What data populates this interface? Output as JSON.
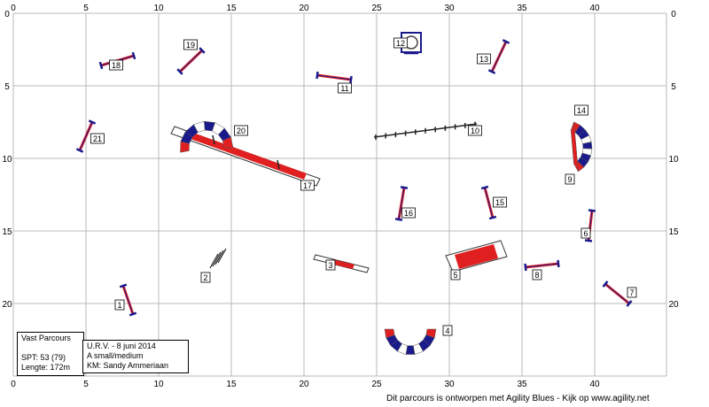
{
  "grid": {
    "x_ticks": [
      "0",
      "5",
      "10",
      "15",
      "20",
      "25",
      "30",
      "35",
      "40"
    ],
    "y_ticks": [
      "0",
      "5",
      "10",
      "15",
      "20"
    ]
  },
  "obstacles": [
    {
      "number": "1",
      "kind": "hurdle"
    },
    {
      "number": "2",
      "kind": "tyre"
    },
    {
      "number": "3",
      "kind": "seesaw"
    },
    {
      "number": "4",
      "kind": "tunnel"
    },
    {
      "number": "5",
      "kind": "table"
    },
    {
      "number": "6",
      "kind": "hurdle"
    },
    {
      "number": "7",
      "kind": "hurdle"
    },
    {
      "number": "8",
      "kind": "hurdle"
    },
    {
      "number": "9",
      "kind": "tunnel"
    },
    {
      "number": "10",
      "kind": "weave poles"
    },
    {
      "number": "11",
      "kind": "hurdle"
    },
    {
      "number": "12",
      "kind": "tyre"
    },
    {
      "number": "13",
      "kind": "hurdle"
    },
    {
      "number": "14",
      "kind": "tunnel"
    },
    {
      "number": "15",
      "kind": "hurdle"
    },
    {
      "number": "16",
      "kind": "hurdle"
    },
    {
      "number": "17",
      "kind": "dog walk"
    },
    {
      "number": "18",
      "kind": "hurdle"
    },
    {
      "number": "19",
      "kind": "hurdle"
    },
    {
      "number": "20",
      "kind": "tunnel"
    },
    {
      "number": "21",
      "kind": "hurdle"
    }
  ],
  "info": {
    "title": "Vast Parcours",
    "spt": "SPT:   53 (79)",
    "length": "Lengte: 172m"
  },
  "judge": {
    "line1": "U.R.V. - 8 juni 2014",
    "line2": "A small/medium",
    "line3": "KM: Sandy Ammeriaan"
  },
  "footer": "Dit parcours is ontworpen met Agility Blues - Kijk op www.agility.net",
  "colors": {
    "grid": "#b8b8b8",
    "red": "#e02020",
    "blue": "#1a1a8c",
    "bar": "#333333"
  }
}
